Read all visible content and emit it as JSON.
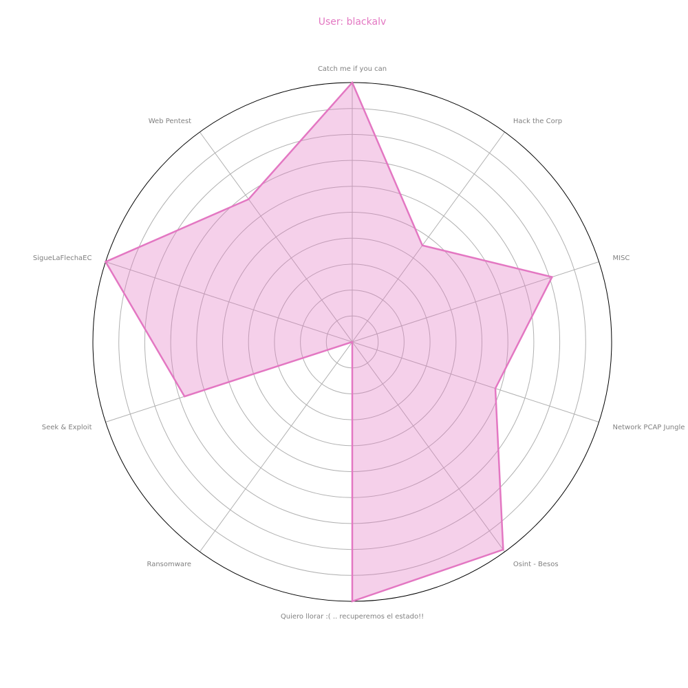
{
  "chart_data": {
    "type": "radar",
    "title": "User: blackalv",
    "categories": [
      "Catch me if you can",
      "Hack the Corp",
      "MISC",
      "Network PCAP Jungle",
      "Osint - Besos",
      "Quiero llorar :( .. recuperemos el estado!!",
      "Ransomware",
      "Seek & Exploit",
      "SigueLaFlechaEC",
      "Web Pentest"
    ],
    "series": [
      {
        "values": [
          1.0,
          0.46,
          0.81,
          0.58,
          0.99,
          1.0,
          0.0,
          0.68,
          1.0,
          0.68
        ]
      }
    ],
    "rlim": [
      0,
      1
    ],
    "grid": true,
    "colors": {
      "series": "#e377c2",
      "fill": "#f5ceE6",
      "frame": "#000000",
      "grid": "#b0b0b0",
      "labels": "#808080"
    }
  }
}
